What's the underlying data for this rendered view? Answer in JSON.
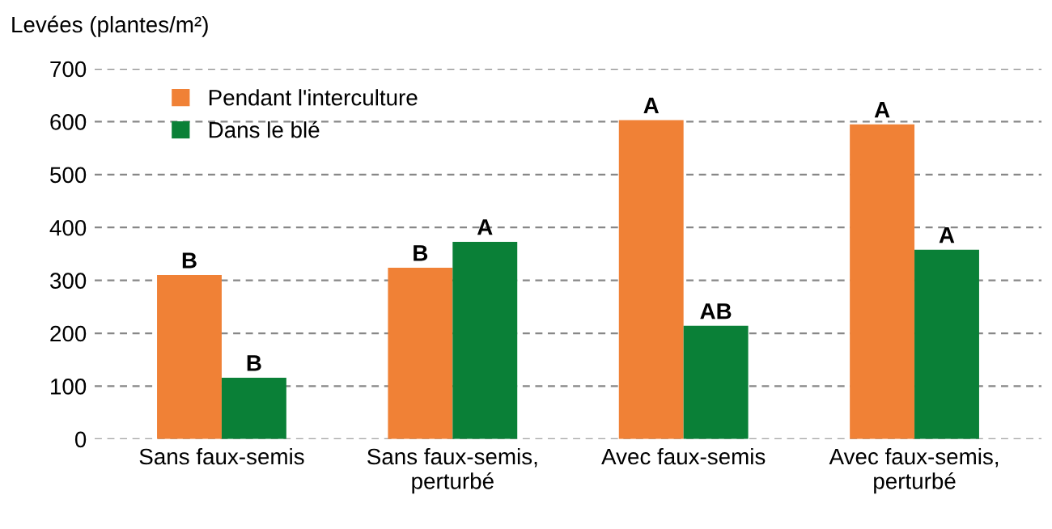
{
  "chart_data": {
    "type": "bar",
    "title": "Levées (plantes/m²)",
    "categories": [
      "Sans faux-semis",
      "Sans faux-semis,\nperturbé",
      "Avec faux-semis",
      "Avec faux-semis,\nperturbé"
    ],
    "series": [
      {
        "name": "Pendant l'interculture",
        "color": "#f08136",
        "values": [
          310,
          324,
          603,
          595
        ],
        "value_labels": [
          "B",
          "B",
          "A",
          "A"
        ]
      },
      {
        "name": "Dans le blé",
        "color": "#0a8037",
        "values": [
          116,
          373,
          214,
          358
        ],
        "value_labels": [
          "B",
          "A",
          "AB",
          "A"
        ]
      }
    ],
    "ylim": [
      0,
      700
    ],
    "yticks": [
      0,
      100,
      200,
      300,
      400,
      500,
      600,
      700
    ],
    "grid": "y",
    "legend": "top left"
  }
}
